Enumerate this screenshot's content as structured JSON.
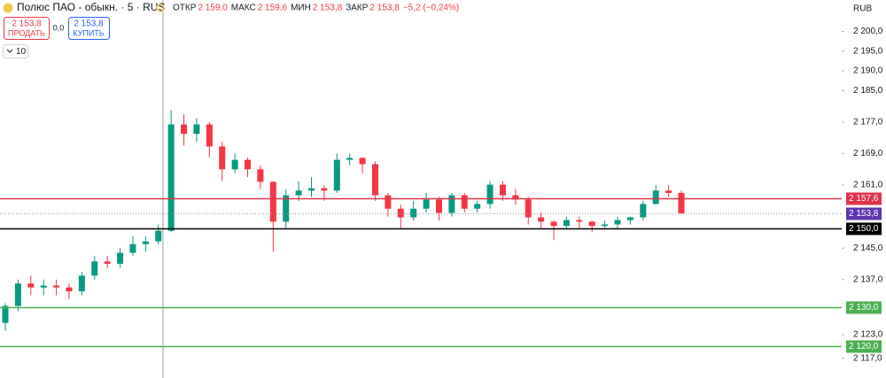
{
  "toolbar": {
    "symbol": "Полюс ПАО - обыкн. · 5 · RUS",
    "ohlc": [
      {
        "label": "ОТКР",
        "value": "2 159,0"
      },
      {
        "label": "МАКС",
        "value": "2 159,6"
      },
      {
        "label": "МИН",
        "value": "2 153,8"
      },
      {
        "label": "ЗАКР",
        "value": "2 153,8"
      }
    ],
    "change": "−5,2 (−0,24%)",
    "sell": {
      "price": "2 153,8",
      "label": "ПРОДАТЬ"
    },
    "spread": "0,0",
    "buy": {
      "price": "2 153,8",
      "label": "КУПИТЬ"
    },
    "indicators": "10",
    "currency": "RUB"
  },
  "chart_data": {
    "type": "candlestick",
    "open": [
      2126,
      2130.3,
      2136,
      2135,
      2135.5,
      2135,
      2134,
      2138,
      2141.6,
      2141,
      2143.8,
      2146,
      2146.7,
      2149.4,
      2176.4,
      2174,
      2176.4,
      2170.8,
      2165,
      2167.4,
      2165,
      2161.8,
      2151.7,
      2158.4,
      2159.6,
      2160.2,
      2159.6,
      2167.4,
      2167.9,
      2166.3,
      2158.4,
      2155,
      2152.8,
      2155,
      2157.3,
      2153.9,
      2158.4,
      2155,
      2156.2,
      2161.1,
      2158.4,
      2157.3,
      2152.8,
      2151.7,
      2150.6,
      2152.1,
      2151.7,
      2150.6,
      2151,
      2152.1,
      2152.8,
      2156.2,
      2159.6,
      2159.0
    ],
    "high": [
      2131,
      2137,
      2138,
      2137,
      2137,
      2136,
      2139,
      2143,
      2143,
      2145,
      2148,
      2148,
      2151,
      2180,
      2179,
      2178,
      2177,
      2172,
      2169,
      2168,
      2166,
      2162,
      2160,
      2162,
      2163,
      2161,
      2169,
      2169,
      2168,
      2167,
      2159,
      2156,
      2157,
      2159,
      2158,
      2159,
      2159,
      2157,
      2162,
      2162,
      2160,
      2158,
      2154,
      2152,
      2153,
      2153,
      2152,
      2152,
      2153,
      2153,
      2157,
      2161,
      2161,
      2159.6
    ],
    "low": [
      2124,
      2129,
      2133,
      2133,
      2133,
      2132,
      2133,
      2137,
      2140,
      2140,
      2143,
      2144,
      2146,
      2149,
      2171,
      2172,
      2168,
      2162,
      2164,
      2163,
      2160,
      2144,
      2150,
      2157,
      2158,
      2157,
      2159,
      2166,
      2164,
      2157,
      2153,
      2150,
      2152,
      2154,
      2152,
      2153,
      2154,
      2154,
      2155,
      2157,
      2156,
      2151,
      2150,
      2147,
      2150,
      2150,
      2149,
      2150,
      2150,
      2151,
      2152,
      2156,
      2158,
      2153.8
    ],
    "close": [
      2130.3,
      2136,
      2135,
      2135.5,
      2135,
      2134,
      2138,
      2141.6,
      2141,
      2143.8,
      2146,
      2146.7,
      2149.4,
      2176.4,
      2174,
      2176.4,
      2170.8,
      2165,
      2167.4,
      2165,
      2161.8,
      2151.7,
      2158.4,
      2159.6,
      2160.2,
      2159.6,
      2167.4,
      2167.9,
      2166.3,
      2158.4,
      2155,
      2152.8,
      2155,
      2157.3,
      2153.9,
      2158.4,
      2155,
      2156.2,
      2161.1,
      2158.4,
      2157.3,
      2152.8,
      2151.7,
      2150.6,
      2152.1,
      2151.7,
      2150.6,
      2151,
      2152.1,
      2152.8,
      2156.2,
      2159.6,
      2159.0,
      2153.8
    ],
    "up_color": "#089981",
    "down_color": "#f23645",
    "ylim": [
      2112,
      2208
    ],
    "yticks": [
      {
        "value": 2200,
        "label": "2 200,0"
      },
      {
        "value": 2195,
        "label": "2 195,0"
      },
      {
        "value": 2190,
        "label": "2 190,0"
      },
      {
        "value": 2185,
        "label": "2 185,0"
      },
      {
        "value": 2177,
        "label": "2 177,0"
      },
      {
        "value": 2169,
        "label": "2 169,0"
      },
      {
        "value": 2161,
        "label": "2 161,0"
      },
      {
        "value": 2145,
        "label": "2 145,0"
      },
      {
        "value": 2137,
        "label": "2 137,0"
      },
      {
        "value": 2123,
        "label": "2 123,0"
      },
      {
        "value": 2117,
        "label": "2 117,0"
      }
    ],
    "levels": [
      {
        "value": 2157.6,
        "label": "2 157,6",
        "color": "#e0334a",
        "style": "solid"
      },
      {
        "value": 2153.8,
        "label": "2 153,8",
        "color": "#5e35b1",
        "style": "dotted"
      },
      {
        "value": 2150,
        "label": "2 150,0",
        "color": "#000000",
        "style": "solid"
      },
      {
        "value": 2130,
        "label": "2 130,0",
        "color": "#4caf50",
        "style": "solid"
      },
      {
        "value": 2120,
        "label": "2 120,0",
        "color": "#4caf50",
        "style": "solid"
      }
    ]
  }
}
